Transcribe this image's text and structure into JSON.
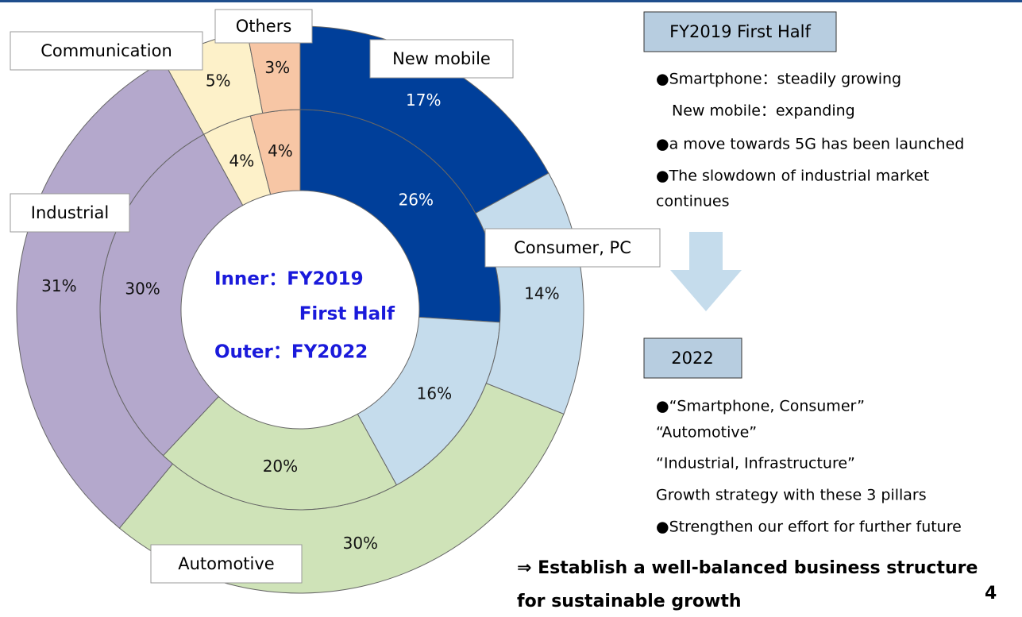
{
  "chart_data": {
    "type": "donut",
    "categories": [
      "New mobile",
      "Consumer, PC",
      "Automotive",
      "Industrial",
      "Communication",
      "Others"
    ],
    "colors": [
      "#003f9a",
      "#c5dcec",
      "#cfe3b8",
      "#b4a8cc",
      "#fdf1c9",
      "#f7c6a5"
    ],
    "series": [
      {
        "ring": "inner",
        "values": [
          26,
          16,
          20,
          30,
          4,
          4
        ],
        "value_labels": [
          "26%",
          "16%",
          "20%",
          "30%",
          "4%",
          "4%"
        ]
      },
      {
        "ring": "outer",
        "values": [
          17,
          14,
          30,
          31,
          5,
          3
        ],
        "value_labels": [
          "17%",
          "14%",
          "30%",
          "31%",
          "5%",
          "3%"
        ]
      }
    ],
    "center_text": [
      "Inner：FY2019",
      "First Half",
      "Outer：FY2022"
    ]
  },
  "notes": {
    "section1": {
      "title": "FY2019 First Half",
      "lines": [
        "●Smartphone：steadily growing",
        "New mobile：expanding",
        "●a move towards 5G has been launched",
        "●The slowdown of industrial market",
        "continues"
      ]
    },
    "section2": {
      "title": "2022",
      "lines": [
        "●“Smartphone, Consumer”",
        "“Automotive”",
        "“Industrial, Infrastructure”",
        "Growth strategy with these 3 pillars",
        "●Strengthen our effort for further future"
      ]
    },
    "conclusion": [
      "⇒ Establish a well-balanced business structure",
      "for sustainable growth"
    ],
    "page_number": "4"
  }
}
